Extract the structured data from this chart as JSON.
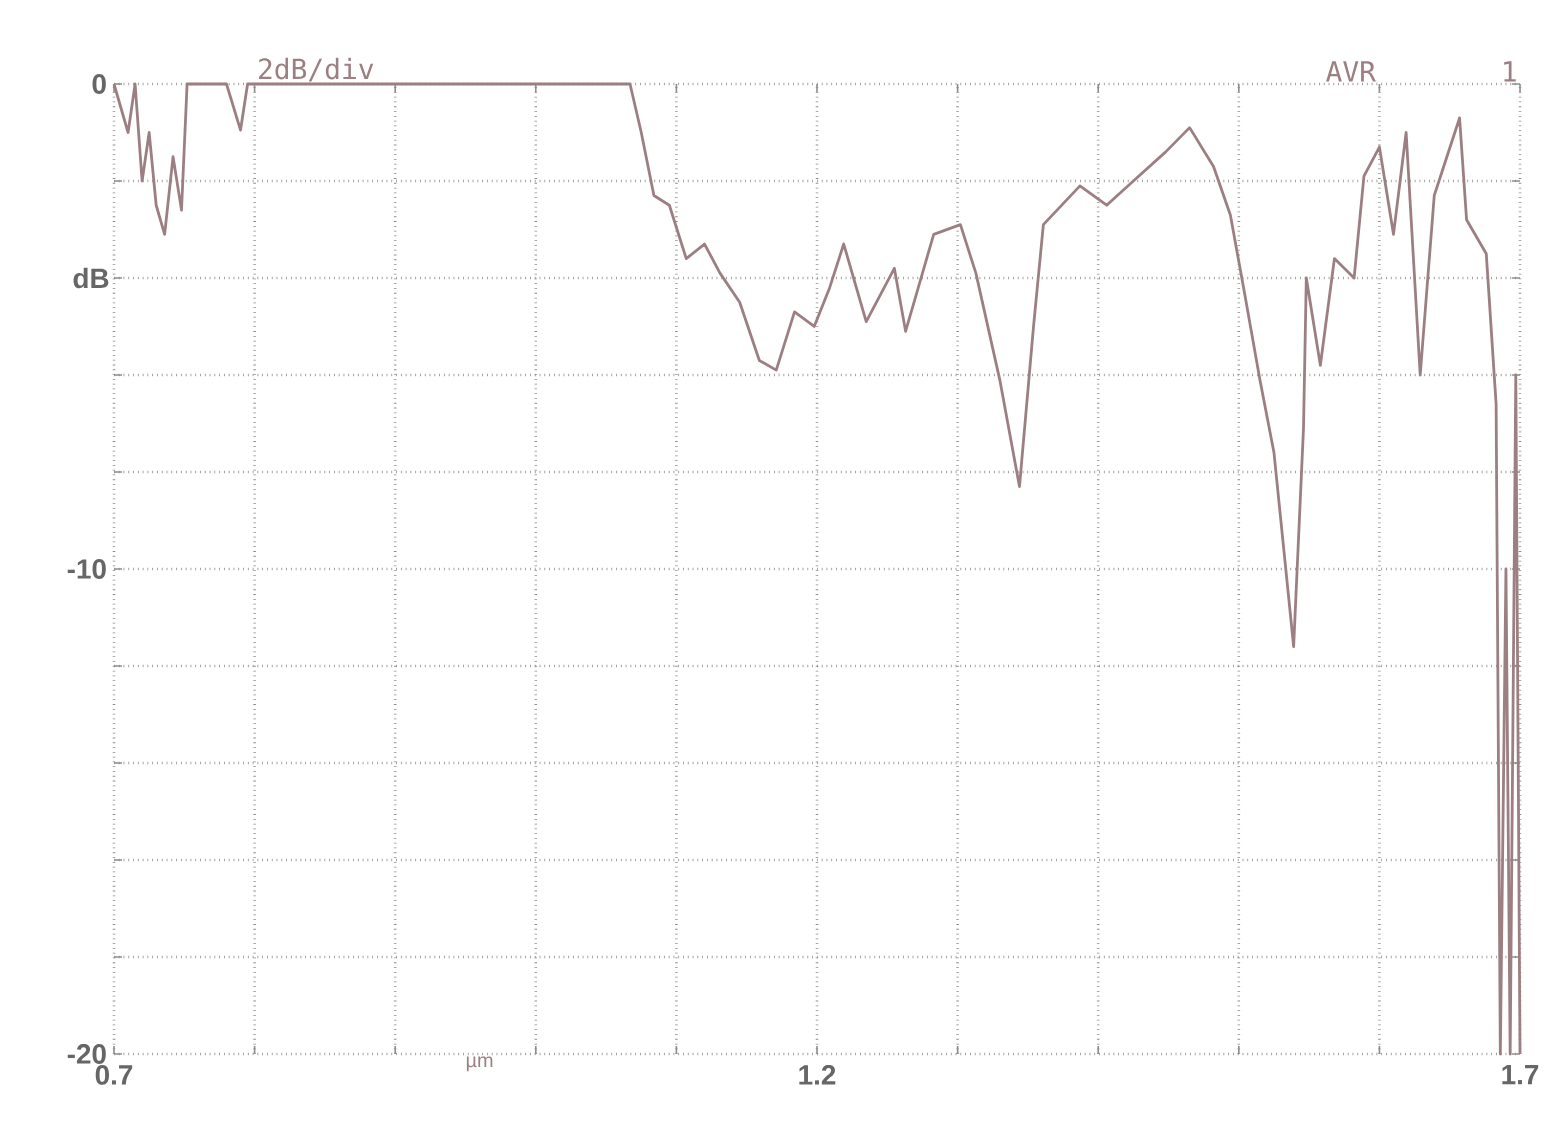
{
  "chart_data": {
    "type": "line",
    "xlabel": "µm",
    "ylabel": "dB",
    "annotations": [
      "2dB/div",
      "AVR",
      "1"
    ],
    "xlim": [
      0.7,
      1.7
    ],
    "ylim": [
      -20,
      0
    ],
    "xticks": [
      0.7,
      {
        "value": 0.8,
        "label": null
      },
      {
        "value": 0.9,
        "label": null
      },
      {
        "value": 1.0,
        "label": null
      },
      {
        "value": 1.1,
        "label": null
      },
      1.2,
      {
        "value": 1.3,
        "label": null
      },
      {
        "value": 1.4,
        "label": null
      },
      {
        "value": 1.5,
        "label": null
      },
      {
        "value": 1.6,
        "label": null
      },
      1.7
    ],
    "yticks": [
      -20,
      {
        "value": -18,
        "label": null
      },
      {
        "value": -16,
        "label": null
      },
      {
        "value": -14,
        "label": null
      },
      {
        "value": -12,
        "label": null
      },
      -10,
      {
        "value": -8,
        "label": null
      },
      {
        "value": -6,
        "label": null
      },
      {
        "value": -4,
        "label": null
      },
      {
        "value": -2,
        "label": null
      },
      0
    ],
    "grid": true,
    "series": [
      {
        "color": "#9c7f82",
        "x": [
          0.7,
          0.71,
          0.715,
          0.72,
          0.725,
          0.73,
          0.736,
          0.742,
          0.748,
          0.752,
          0.76,
          0.78,
          0.79,
          0.795,
          0.8,
          0.9,
          1.0,
          1.067,
          1.075,
          1.084,
          1.095,
          1.107,
          1.12,
          1.131,
          1.145,
          1.159,
          1.171,
          1.184,
          1.198,
          1.209,
          1.219,
          1.235,
          1.255,
          1.263,
          1.283,
          1.302,
          1.313,
          1.33,
          1.344,
          1.354,
          1.361,
          1.387,
          1.406,
          1.425,
          1.448,
          1.465,
          1.482,
          1.494,
          1.504,
          1.515,
          1.525,
          1.539,
          1.546,
          1.548,
          1.558,
          1.568,
          1.582,
          1.589,
          1.6,
          1.61,
          1.619,
          1.629,
          1.639,
          1.657,
          1.662,
          1.676,
          1.683,
          1.686,
          1.69,
          1.693,
          1.697,
          1.7
        ],
        "values": [
          0,
          -1.0,
          0,
          -2.0,
          -1.0,
          -2.5,
          -3.1,
          -1.5,
          -2.6,
          0,
          0,
          0,
          -0.95,
          0,
          0,
          0,
          0,
          0,
          -1.0,
          -2.3,
          -2.5,
          -3.6,
          -3.3,
          -3.9,
          -4.5,
          -5.7,
          -5.9,
          -4.7,
          -5.0,
          -4.2,
          -3.3,
          -4.9,
          -3.8,
          -5.1,
          -3.1,
          -2.9,
          -3.9,
          -6.1,
          -8.3,
          -5.0,
          -2.9,
          -2.1,
          -2.5,
          -2.0,
          -1.4,
          -0.9,
          -1.7,
          -2.7,
          -4.3,
          -6.1,
          -7.6,
          -11.6,
          -7.1,
          -4.0,
          -5.8,
          -3.6,
          -4.0,
          -1.9,
          -1.3,
          -3.1,
          -1.0,
          -6.0,
          -2.3,
          -0.7,
          -2.8,
          -3.5,
          -6.6,
          -20,
          -10,
          -20,
          -6.0,
          -20
        ]
      }
    ]
  }
}
